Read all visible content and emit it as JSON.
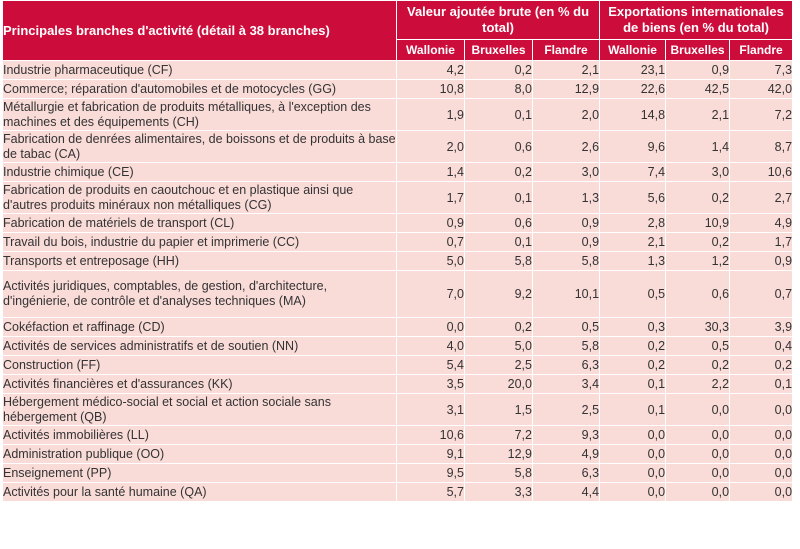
{
  "table": {
    "header": {
      "branches": "Principales branches d'activité (détail à 38 branches)",
      "vab": "Valeur ajoutée brute (en % du total)",
      "exports": "Exportations internationales de biens (en % du total)",
      "regions": [
        "Wallonie",
        "Bruxelles",
        "Flandre",
        "Wallonie",
        "Bruxelles",
        "Flandre"
      ]
    },
    "rows": [
      {
        "label": "Industrie pharmaceutique (CF)",
        "values": [
          "4,2",
          "0,2",
          "2,1",
          "23,1",
          "0,9",
          "7,3"
        ]
      },
      {
        "label": "Commerce; réparation d'automobiles et de motocycles (GG)",
        "values": [
          "10,8",
          "8,0",
          "12,9",
          "22,6",
          "42,5",
          "42,0"
        ]
      },
      {
        "label": "Métallurgie et fabrication de produits métalliques, à l'exception des machines et des équipements (CH)",
        "values": [
          "1,9",
          "0,1",
          "2,0",
          "14,8",
          "2,1",
          "7,2"
        ]
      },
      {
        "label": "Fabrication de denrées alimentaires, de boissons et de produits à base de tabac (CA)",
        "values": [
          "2,0",
          "0,6",
          "2,6",
          "9,6",
          "1,4",
          "8,7"
        ]
      },
      {
        "label": "Industrie chimique (CE)",
        "values": [
          "1,4",
          "0,2",
          "3,0",
          "7,4",
          "3,0",
          "10,6"
        ]
      },
      {
        "label": "Fabrication de produits en caoutchouc et en plastique ainsi que d'autres produits minéraux non métalliques (CG)",
        "values": [
          "1,7",
          "0,1",
          "1,3",
          "5,6",
          "0,2",
          "2,7"
        ]
      },
      {
        "label": "Fabrication de matériels de transport (CL)",
        "values": [
          "0,9",
          "0,6",
          "0,9",
          "2,8",
          "10,9",
          "4,9"
        ]
      },
      {
        "label": "Travail du bois, industrie du papier et imprimerie (CC)",
        "values": [
          "0,7",
          "0,1",
          "0,9",
          "2,1",
          "0,2",
          "1,7"
        ]
      },
      {
        "label": "Transports et entreposage (HH)",
        "values": [
          "5,0",
          "5,8",
          "5,8",
          "1,3",
          "1,2",
          "0,9"
        ]
      },
      {
        "label": "Activités juridiques, comptables, de gestion, d'architecture, d'ingénierie, de contrôle et d'analyses techniques (MA)",
        "values": [
          "7,0",
          "9,2",
          "10,1",
          "0,5",
          "0,6",
          "0,7"
        ]
      },
      {
        "label": "Cokéfaction et raffinage (CD)",
        "values": [
          "0,0",
          "0,2",
          "0,5",
          "0,3",
          "30,3",
          "3,9"
        ]
      },
      {
        "label": "Activités de services administratifs et de soutien (NN)",
        "values": [
          "4,0",
          "5,0",
          "5,8",
          "0,2",
          "0,5",
          "0,4"
        ]
      },
      {
        "label": "Construction (FF)",
        "values": [
          "5,4",
          "2,5",
          "6,3",
          "0,2",
          "0,2",
          "0,2"
        ]
      },
      {
        "label": "Activités financières et d'assurances (KK)",
        "values": [
          "3,5",
          "20,0",
          "3,4",
          "0,1",
          "2,2",
          "0,1"
        ]
      },
      {
        "label": "Hébergement médico-social et social et action sociale sans hébergement (QB)",
        "values": [
          "3,1",
          "1,5",
          "2,5",
          "0,1",
          "0,0",
          "0,0"
        ]
      },
      {
        "label": "Activités immobilières (LL)",
        "values": [
          "10,6",
          "7,2",
          "9,3",
          "0,0",
          "0,0",
          "0,0"
        ]
      },
      {
        "label": "Administration publique (OO)",
        "values": [
          "9,1",
          "12,9",
          "4,9",
          "0,0",
          "0,0",
          "0,0"
        ]
      },
      {
        "label": "Enseignement (PP)",
        "values": [
          "9,5",
          "5,8",
          "6,3",
          "0,0",
          "0,0",
          "0,0"
        ]
      },
      {
        "label": "Activités pour la santé humaine (QA)",
        "values": [
          "5,7",
          "3,3",
          "4,4",
          "0,0",
          "0,0",
          "0,0"
        ]
      }
    ]
  }
}
